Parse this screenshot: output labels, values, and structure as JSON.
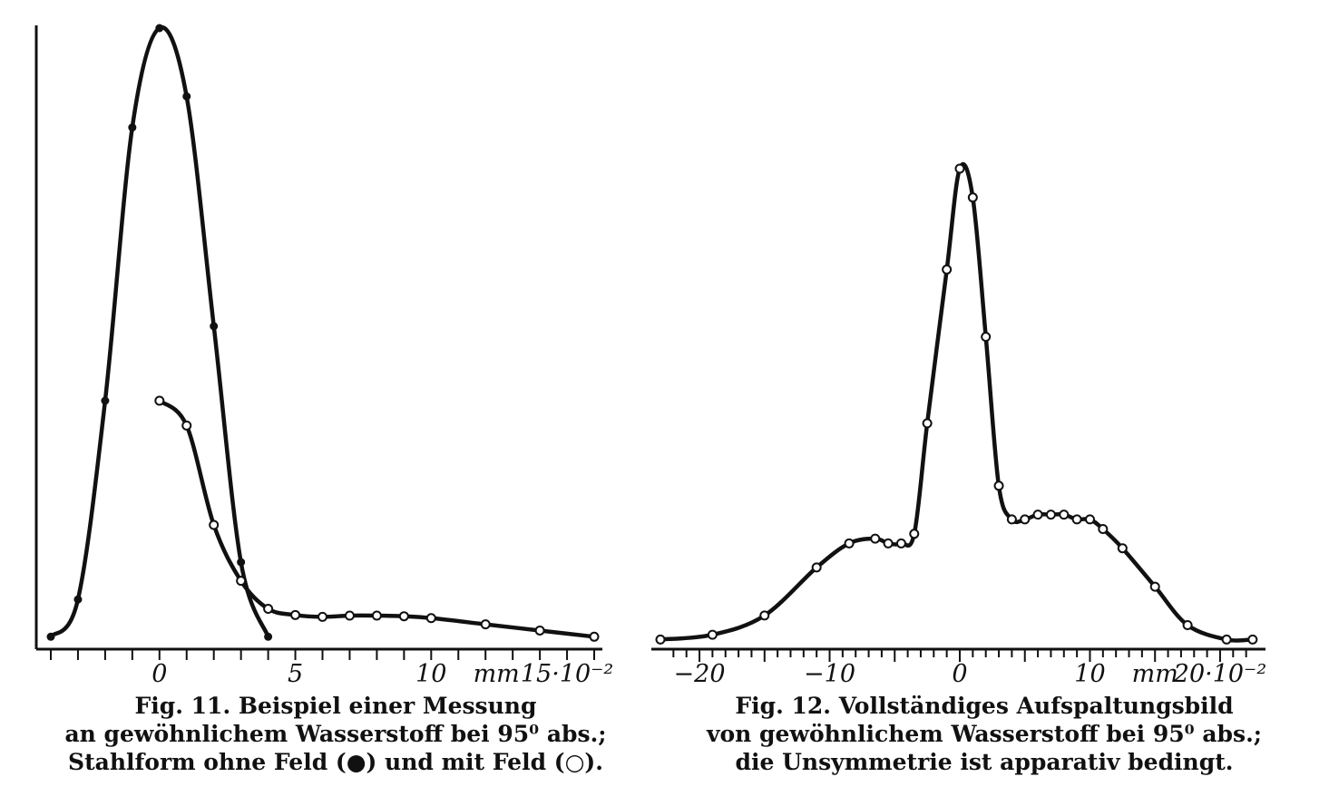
{
  "colors": {
    "ink": "#111111",
    "paper": "#ffffff"
  },
  "chart_data": [
    {
      "type": "line",
      "figure": "Fig. 11",
      "caption": [
        "Fig. 11. Beispiel einer Messung",
        "an gewöhnlichem Wasserstoff bei 95⁰ abs.;",
        "Stahlform ohne Feld (●) und mit Feld (○)."
      ],
      "x_tick_labels": [
        {
          "x": 0,
          "label": "0"
        },
        {
          "x": 5,
          "label": "5"
        },
        {
          "x": 10,
          "label": "10"
        },
        {
          "x": 12.4,
          "label": "mm"
        },
        {
          "x": 15,
          "label": "15·10⁻²"
        }
      ],
      "xlim": [
        -4.2,
        16.3
      ],
      "ylim": [
        0,
        1.0
      ],
      "series": [
        {
          "marker": "filled",
          "x": [
            -4.0,
            -3.0,
            -2.0,
            -1.0,
            0.0,
            1.0,
            2.0,
            3.0,
            4.0
          ],
          "y": [
            0.02,
            0.08,
            0.4,
            0.84,
            1.0,
            0.89,
            0.52,
            0.14,
            0.02
          ]
        },
        {
          "marker": "open",
          "x": [
            0.0,
            1.0,
            2.0,
            3.0,
            4.0,
            5.0,
            6.0,
            7.0,
            8.0,
            9.0,
            10.0,
            12.0,
            14.0,
            16.0
          ],
          "y": [
            0.4,
            0.36,
            0.2,
            0.11,
            0.065,
            0.055,
            0.052,
            0.054,
            0.054,
            0.053,
            0.05,
            0.04,
            0.03,
            0.02
          ]
        }
      ]
    },
    {
      "type": "line",
      "figure": "Fig. 12",
      "caption": [
        "Fig. 12. Vollständiges Aufspaltungsbild",
        "von gewöhnlichem Wasserstoff bei 95⁰ abs.;",
        "die Unsymmetrie ist apparativ bedingt."
      ],
      "x_tick_labels": [
        {
          "x": -20,
          "label": "−20"
        },
        {
          "x": -10,
          "label": "−10"
        },
        {
          "x": 0,
          "label": "0"
        },
        {
          "x": 10,
          "label": "10"
        },
        {
          "x": 15,
          "label": "mm"
        },
        {
          "x": 20,
          "label": "20·10⁻²"
        }
      ],
      "xlim": [
        -23,
        23
      ],
      "ylim": [
        0,
        1.0
      ],
      "series": [
        {
          "marker": "open",
          "x": [
            -23.0,
            -19.0,
            -15.0,
            -11.0,
            -8.5,
            -6.5,
            -5.5,
            -4.5,
            -3.5,
            -2.5,
            -1.0,
            0.0,
            1.0,
            2.0,
            3.0,
            4.0,
            5.0,
            6.0,
            7.0,
            8.0,
            9.0,
            10.0,
            11.0,
            12.5,
            15.0,
            17.5,
            20.5,
            22.5
          ],
          "y": [
            0.02,
            0.03,
            0.07,
            0.17,
            0.22,
            0.23,
            0.22,
            0.22,
            0.24,
            0.47,
            0.79,
            1.0,
            0.94,
            0.65,
            0.34,
            0.27,
            0.27,
            0.28,
            0.28,
            0.28,
            0.27,
            0.27,
            0.25,
            0.21,
            0.13,
            0.05,
            0.02,
            0.02
          ]
        }
      ]
    }
  ]
}
